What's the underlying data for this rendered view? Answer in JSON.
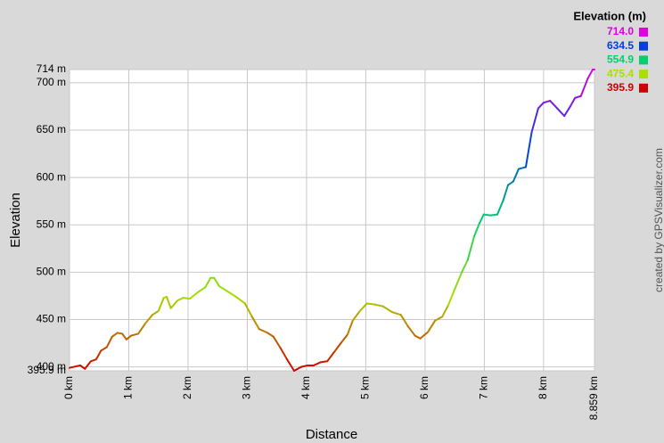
{
  "chart_data": {
    "type": "line",
    "title": "Elevation (m)",
    "x_label": "Distance",
    "y_label": "Elevation",
    "credit": "created by GPSVisualizer.com",
    "x": [
      0,
      0.18,
      0.26,
      0.36,
      0.45,
      0.53,
      0.63,
      0.72,
      0.81,
      0.89,
      0.96,
      1.04,
      1.16,
      1.28,
      1.4,
      1.5,
      1.59,
      1.64,
      1.71,
      1.82,
      1.92,
      2.03,
      2.17,
      2.29,
      2.38,
      2.44,
      2.53,
      2.66,
      2.81,
      2.96,
      3.08,
      3.2,
      3.34,
      3.44,
      3.56,
      3.67,
      3.79,
      3.91,
      4.02,
      4.12,
      4.24,
      4.35,
      4.47,
      4.59,
      4.69,
      4.78,
      4.9,
      5.02,
      5.14,
      5.29,
      5.44,
      5.59,
      5.71,
      5.83,
      5.92,
      6.05,
      6.17,
      6.29,
      6.39,
      6.5,
      6.62,
      6.72,
      6.83,
      6.92,
      6.99,
      7.1,
      7.22,
      7.32,
      7.4,
      7.49,
      7.58,
      7.7,
      7.8,
      7.91,
      8.0,
      8.11,
      8.23,
      8.35,
      8.45,
      8.53,
      8.63,
      8.75,
      8.83,
      8.859
    ],
    "values": [
      399,
      401.6,
      398,
      406,
      408,
      417,
      421,
      432,
      436,
      435,
      429,
      433,
      435,
      446,
      455,
      459,
      473,
      474,
      462,
      470,
      473,
      472,
      479,
      484,
      494,
      494,
      485,
      480,
      474,
      467,
      453,
      440,
      436,
      432,
      420,
      408,
      395.9,
      400,
      401.6,
      401.6,
      405,
      406,
      416,
      426,
      434,
      449,
      459,
      467,
      466,
      464,
      458,
      455,
      443,
      433,
      430,
      437,
      449,
      453,
      465,
      482,
      500,
      513,
      538,
      552,
      561,
      560,
      561,
      576,
      592,
      596,
      609,
      611,
      648,
      673,
      679,
      681,
      673,
      665,
      675,
      684,
      686,
      705,
      714,
      714
    ],
    "xlim": [
      0,
      8.859
    ],
    "ylim": [
      395.9,
      714
    ],
    "xticks": [
      {
        "value": 0,
        "label": "0 km"
      },
      {
        "value": 1,
        "label": "1 km"
      },
      {
        "value": 2,
        "label": "2 km"
      },
      {
        "value": 3,
        "label": "3 km"
      },
      {
        "value": 4,
        "label": "4 km"
      },
      {
        "value": 5,
        "label": "5 km"
      },
      {
        "value": 6,
        "label": "6 km"
      },
      {
        "value": 7,
        "label": "7 km"
      },
      {
        "value": 8,
        "label": "8 km"
      },
      {
        "value": 8.859,
        "label": "8.859 km"
      }
    ],
    "yticks": [
      {
        "value": 395.9,
        "label": "395.9 m"
      },
      {
        "value": 400,
        "label": "400 m"
      },
      {
        "value": 450,
        "label": "450 m"
      },
      {
        "value": 500,
        "label": "500 m"
      },
      {
        "value": 550,
        "label": "550 m"
      },
      {
        "value": 600,
        "label": "600 m"
      },
      {
        "value": 650,
        "label": "650 m"
      },
      {
        "value": 700,
        "label": "700 m"
      },
      {
        "value": 714,
        "label": "714 m"
      }
    ],
    "grid": true,
    "legend": [
      {
        "value": 714,
        "label": "714.0",
        "color": "#e000e0"
      },
      {
        "value": 634.5,
        "label": "634.5",
        "color": "#0040e0"
      },
      {
        "value": 554.9,
        "label": "554.9",
        "color": "#00d070"
      },
      {
        "value": 475.4,
        "label": "475.4",
        "color": "#a8e000"
      },
      {
        "value": 395.9,
        "label": "395.9",
        "color": "#d00000"
      }
    ]
  }
}
